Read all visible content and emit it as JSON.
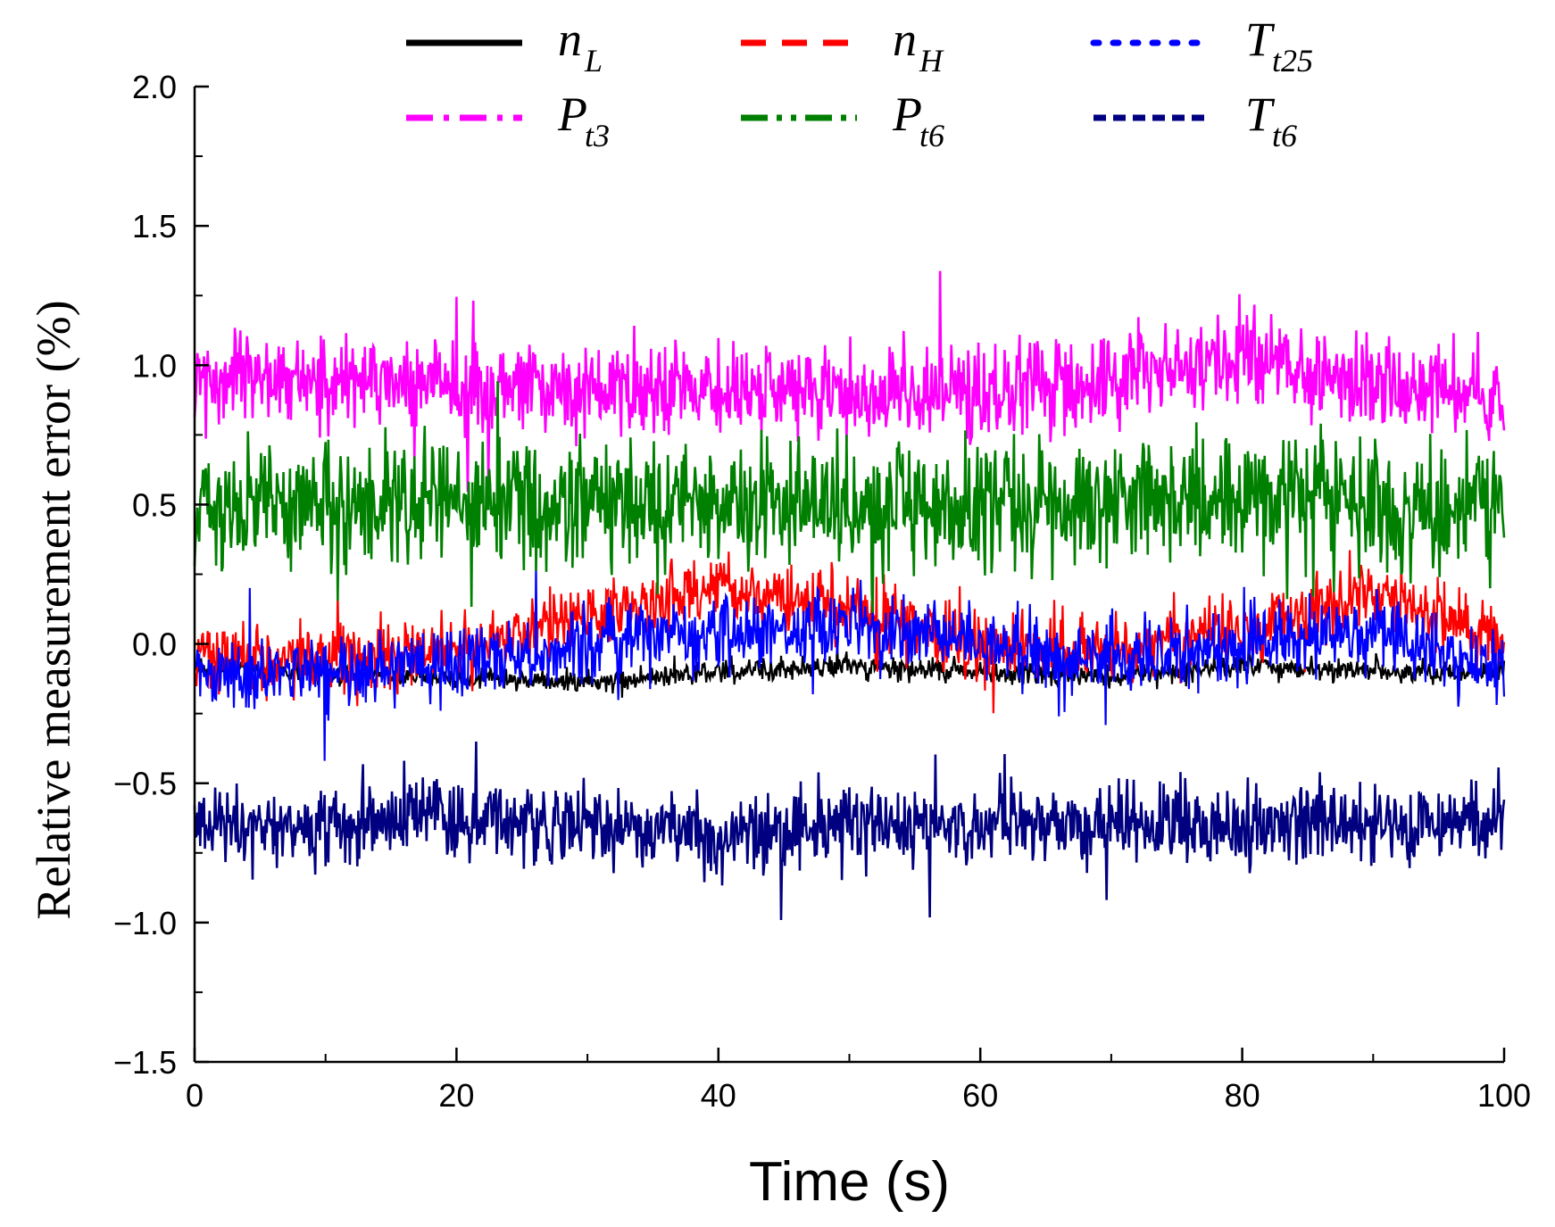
{
  "chart_data": {
    "type": "line",
    "title": "",
    "xlabel": "Time (s)",
    "ylabel": "Relative measurement error (%)",
    "xlim": [
      0,
      100
    ],
    "ylim": [
      -1.5,
      2.0
    ],
    "xticks": [
      0,
      20,
      40,
      60,
      80,
      100
    ],
    "xtick_labels": [
      "0",
      "20",
      "40",
      "60",
      "80",
      "100"
    ],
    "yticks": [
      -1.5,
      -1.0,
      -0.5,
      0.0,
      0.5,
      1.0,
      1.5,
      2.0
    ],
    "ytick_labels": [
      "−1.5",
      "−1.0",
      "−0.5",
      "0.0",
      "0.5",
      "1.0",
      "1.5",
      "2.0"
    ],
    "grid": false,
    "legend_position": "top",
    "series": [
      {
        "name": "n",
        "subscript": "L",
        "color": "#000000",
        "dash": "solid",
        "x": [
          0,
          10,
          20,
          30,
          40,
          50,
          60,
          70,
          80,
          90,
          100
        ],
        "values": [
          -0.08,
          -0.1,
          -0.12,
          -0.14,
          -0.1,
          -0.08,
          -0.1,
          -0.12,
          -0.08,
          -0.1,
          -0.1
        ]
      },
      {
        "name": "n",
        "subscript": "H",
        "color": "#ff0000",
        "dash": "dashed",
        "x": [
          0,
          10,
          20,
          30,
          40,
          50,
          60,
          70,
          80,
          90,
          100
        ],
        "values": [
          -0.05,
          -0.05,
          -0.02,
          0.1,
          0.2,
          0.12,
          0.0,
          -0.02,
          0.05,
          0.2,
          0.0
        ]
      },
      {
        "name": "T",
        "subscript": "t25",
        "color": "#0000ff",
        "dash": "dotted",
        "x": [
          0,
          10,
          20,
          30,
          40,
          50,
          60,
          70,
          80,
          90,
          100
        ],
        "values": [
          -0.1,
          -0.1,
          -0.08,
          0.0,
          0.05,
          0.05,
          0.0,
          -0.05,
          0.0,
          0.05,
          -0.1
        ]
      },
      {
        "name": "P",
        "subscript": "t3",
        "color": "#ff00ff",
        "dash": "dash-dot",
        "x": [
          0,
          10,
          20,
          30,
          40,
          50,
          60,
          70,
          80,
          90,
          100
        ],
        "values": [
          0.95,
          0.95,
          0.92,
          0.9,
          0.92,
          0.9,
          0.9,
          0.95,
          1.05,
          0.92,
          0.9
        ]
      },
      {
        "name": "P",
        "subscript": "t6",
        "color": "#008000",
        "dash": "dash-dot-dot",
        "x": [
          0,
          10,
          20,
          30,
          40,
          50,
          60,
          70,
          80,
          90,
          100
        ],
        "values": [
          0.5,
          0.5,
          0.5,
          0.5,
          0.5,
          0.5,
          0.5,
          0.5,
          0.55,
          0.5,
          0.5
        ]
      },
      {
        "name": "T",
        "subscript": "t6",
        "color": "#000080",
        "dash": "short-dash",
        "x": [
          0,
          10,
          20,
          30,
          40,
          50,
          60,
          70,
          80,
          90,
          100
        ],
        "values": [
          -0.65,
          -0.65,
          -0.62,
          -0.65,
          -0.68,
          -0.65,
          -0.65,
          -0.65,
          -0.65,
          -0.65,
          -0.65
        ]
      }
    ]
  }
}
